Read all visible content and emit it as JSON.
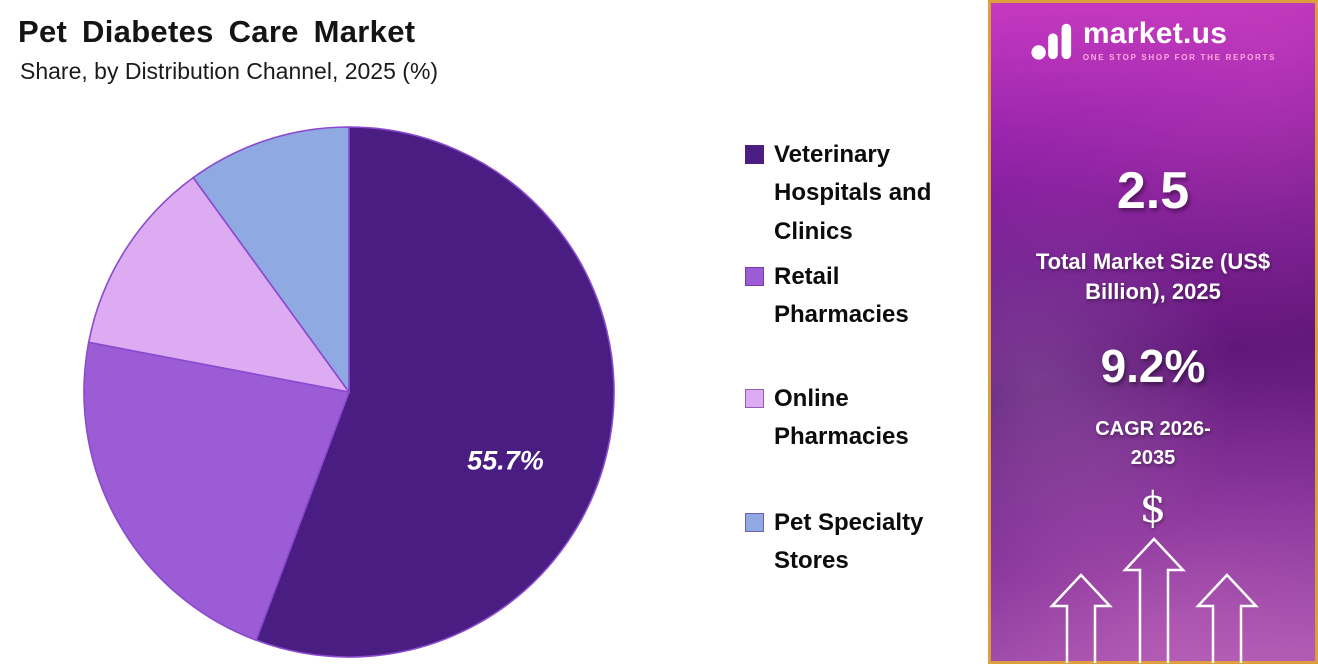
{
  "header": {
    "title": "Pet Diabetes Care Market",
    "subtitle": "Share, by Distribution Channel, 2025 (%)"
  },
  "chart_data": {
    "type": "pie",
    "title": "Pet Diabetes Care Market",
    "subtitle": "Share, by Distribution Channel, 2025 (%)",
    "unit": "%",
    "labels": [
      "Veterinary Hospitals and Clinics",
      "Retail Pharmacies",
      "Online Pharmacies",
      "Pet Specialty Stores"
    ],
    "values": [
      55.7,
      22.3,
      12.0,
      10.0
    ],
    "colors": [
      "#4a1d82",
      "#9c5cd6",
      "#dcabf2",
      "#8fa9e2"
    ],
    "start_angle": "top",
    "direction": "clockwise",
    "data_label": {
      "slice": "Veterinary Hospitals and Clinics",
      "text": "55.7%"
    },
    "legend_position": "right"
  },
  "legend": {
    "items": [
      {
        "label": "Veterinary Hospitals and Clinics",
        "color": "#4a1d82"
      },
      {
        "label": "Retail Pharmacies",
        "color": "#9c5cd6"
      },
      {
        "label": "Online Pharmacies",
        "color": "#dcabf2"
      },
      {
        "label": "Pet Specialty Stores",
        "color": "#8fa9e2"
      }
    ]
  },
  "sidebar": {
    "brand": {
      "name": "market.us",
      "tagline": "ONE STOP SHOP FOR THE REPORTS"
    },
    "stats": [
      {
        "value": "2.5",
        "label": "Total Market Size (US$ Billion), 2025"
      },
      {
        "value": "9.2%",
        "label": "CAGR 2026-2035"
      }
    ],
    "dollar_symbol": "$"
  }
}
